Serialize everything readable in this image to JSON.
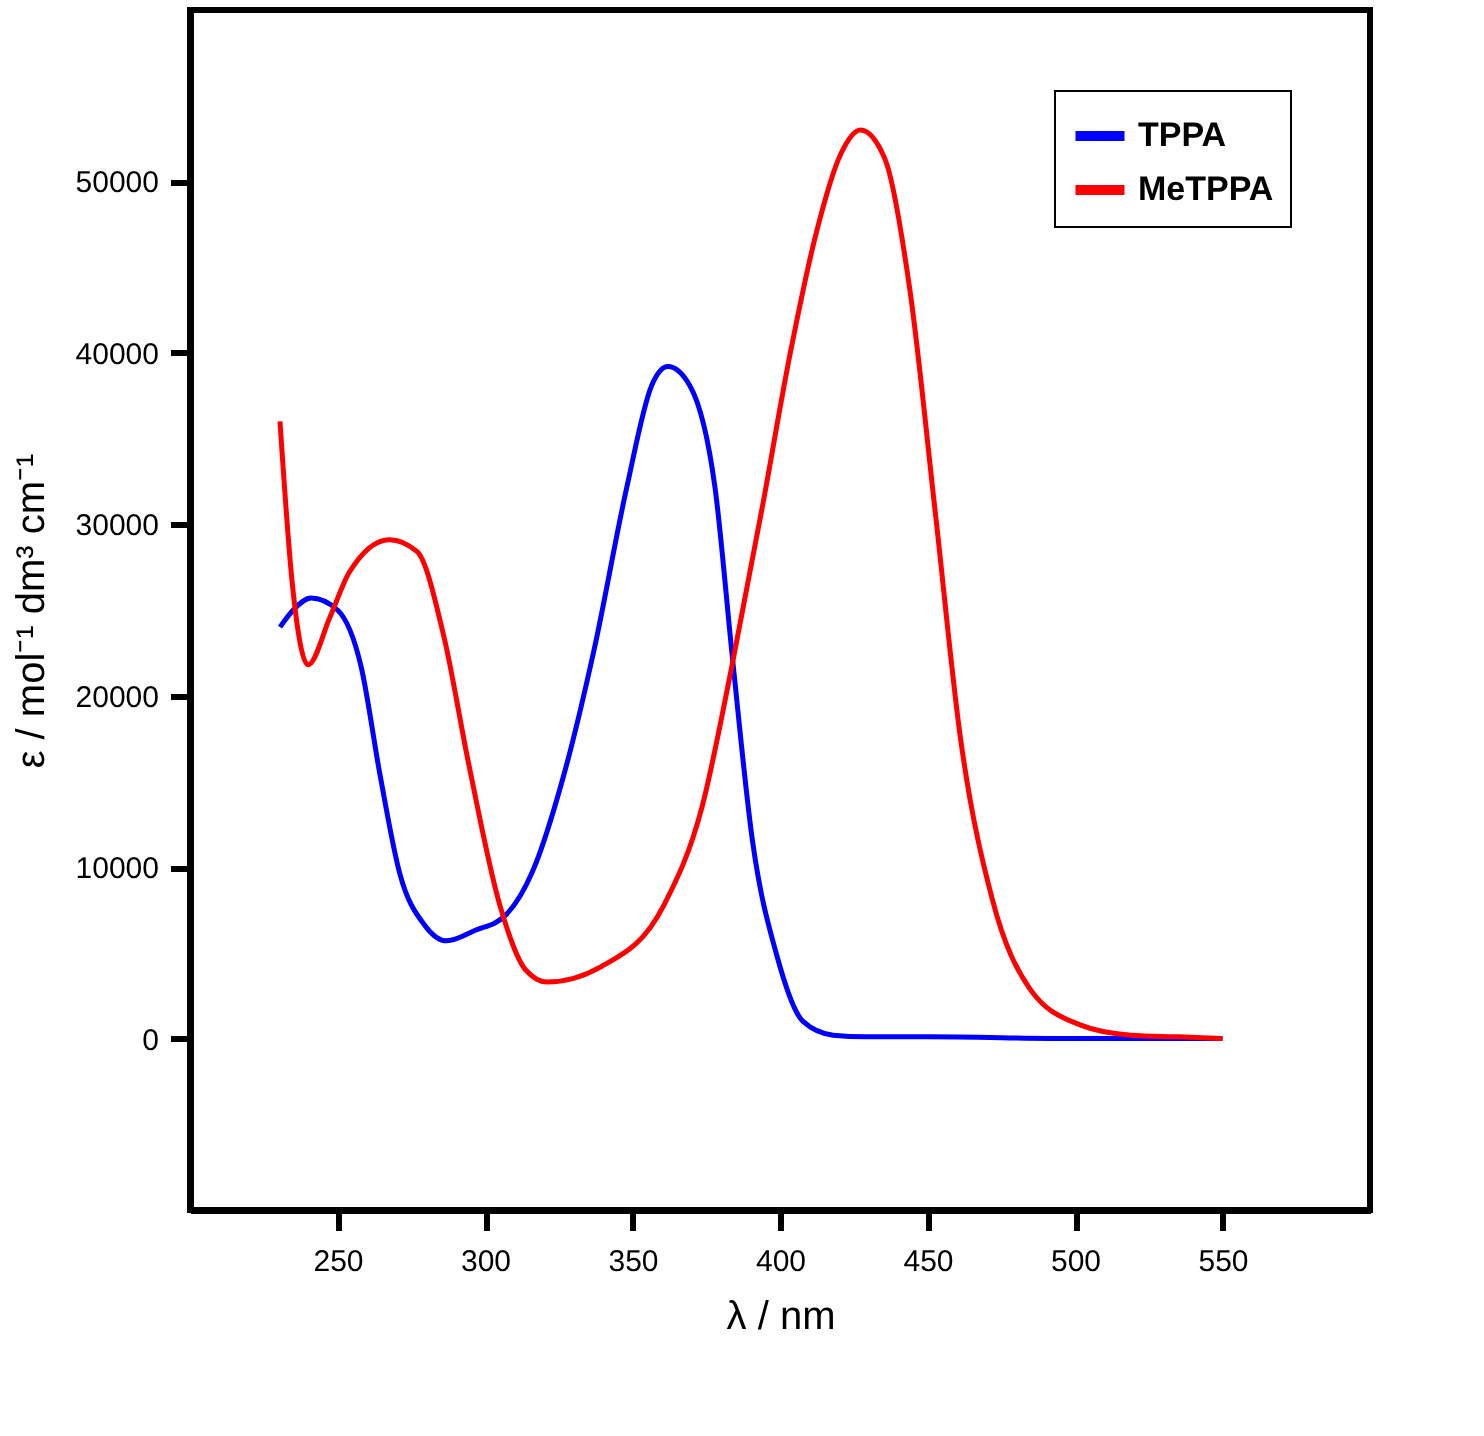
{
  "chart_data": {
    "type": "line",
    "xlabel": "λ / nm",
    "ylabel": "ε / mol⁻¹ dm³ cm⁻¹",
    "xlim": [
      200,
      600
    ],
    "xticks": [
      250,
      300,
      350,
      400,
      450,
      500,
      550
    ],
    "ylim": [
      -10000,
      60000
    ],
    "yticks": [
      0,
      10000,
      20000,
      30000,
      40000,
      50000
    ],
    "grid": false,
    "legend": "top right",
    "line_style": "solid",
    "marker": "none",
    "series": [
      {
        "name": "TPPA",
        "color": "#0000ff",
        "x": [
          230.5,
          235,
          241,
          250,
          258,
          264.5,
          271,
          279.6,
          287,
          296.5,
          307,
          316,
          326.6,
          337,
          348,
          356.5,
          362,
          369.4,
          378,
          384,
          390.7,
          399,
          407.8,
          418,
          429,
          450,
          500,
          550
        ],
        "values": [
          24000,
          25000,
          25700,
          25000,
          21700,
          15300,
          9700,
          6600,
          5700,
          6300,
          7200,
          9700,
          15300,
          22700,
          32100,
          38100,
          39200,
          38100,
          32100,
          22000,
          11500,
          4800,
          1000,
          200,
          100,
          100,
          0,
          0
        ]
      },
      {
        "name": "MeTPPA",
        "color": "#ff0000",
        "x": [
          230.5,
          234.7,
          240,
          247.5,
          254,
          267.6,
          277,
          286,
          294.5,
          305,
          313.8,
          321,
          339.4,
          360.7,
          373.4,
          384,
          394,
          403.5,
          412,
          420.6,
          427.3,
          435.6,
          444,
          452.7,
          461.2,
          472,
          484.7,
          501.7,
          519,
          535,
          550
        ],
        "values": [
          36000,
          26500,
          21800,
          24600,
          27200,
          29100,
          28400,
          23500,
          16000,
          7800,
          4000,
          3300,
          4200,
          7800,
          13400,
          22000,
          31000,
          40000,
          46800,
          51600,
          53000,
          51300,
          43700,
          30600,
          17500,
          8100,
          2900,
          800,
          200,
          100,
          0
        ]
      }
    ]
  }
}
